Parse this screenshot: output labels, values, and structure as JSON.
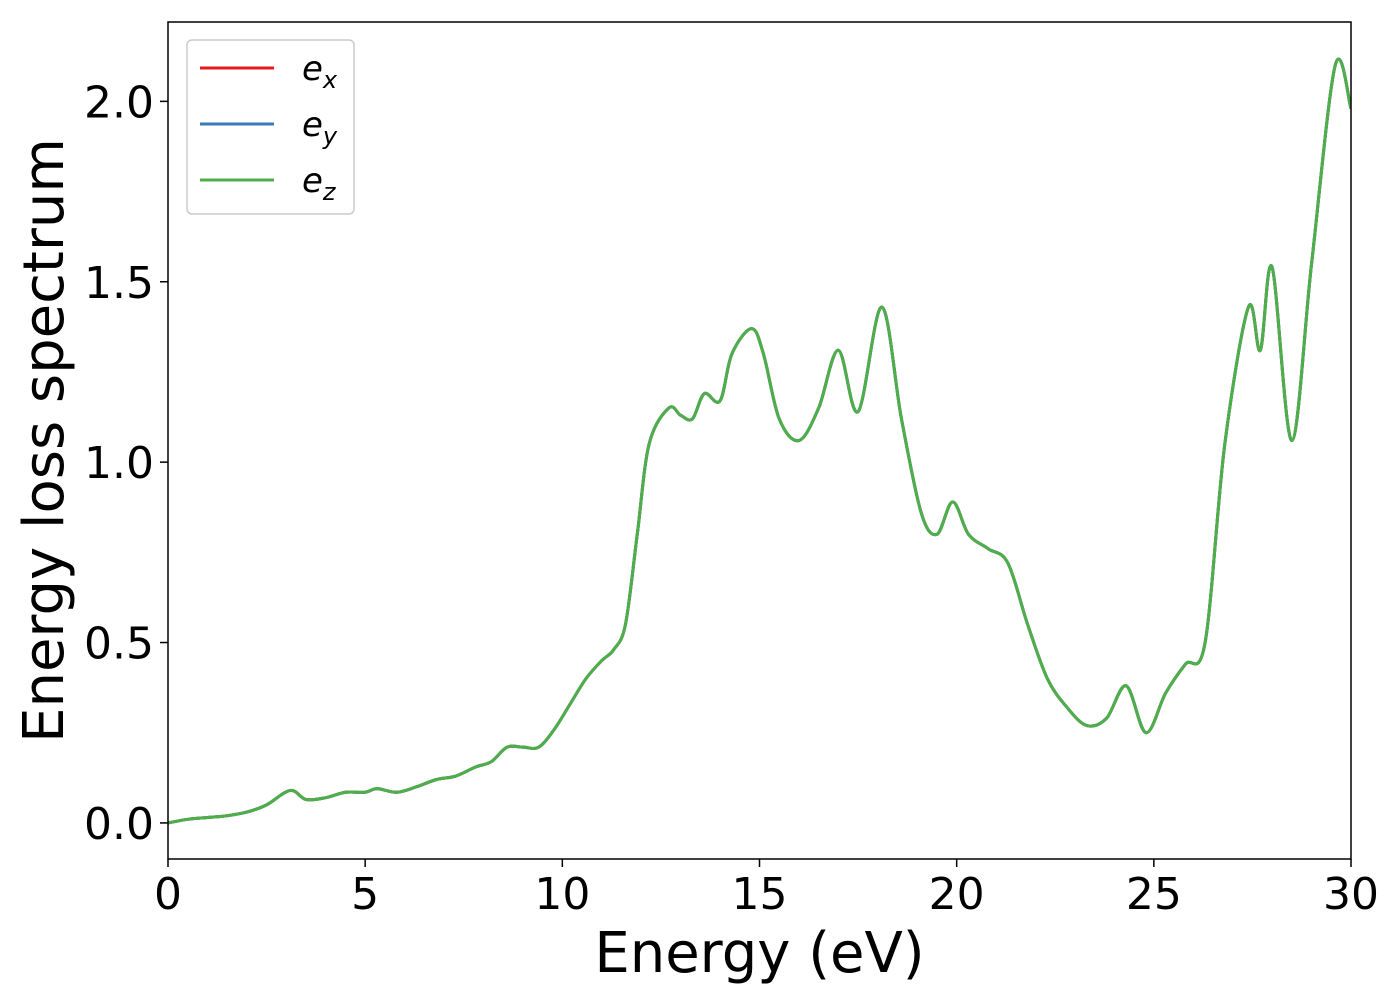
{
  "chart_data": {
    "type": "line",
    "title": "",
    "xlabel": "Energy (eV)",
    "ylabel": "Energy loss spectrum",
    "xlim": [
      0,
      30
    ],
    "ylim": [
      -0.1,
      2.22
    ],
    "xticks": [
      0,
      5,
      10,
      15,
      20,
      25,
      30
    ],
    "xtick_labels": [
      "0",
      "5",
      "10",
      "15",
      "20",
      "25",
      "30"
    ],
    "yticks": [
      0.0,
      0.5,
      1.0,
      1.5,
      2.0
    ],
    "ytick_labels": [
      "0.0",
      "0.5",
      "1.0",
      "1.5",
      "2.0"
    ],
    "grid": false,
    "legend_position": "top-left",
    "x": [
      0,
      0.5,
      1.0,
      1.5,
      2.0,
      2.5,
      3.1,
      3.5,
      4.0,
      4.5,
      5.0,
      5.3,
      5.8,
      6.3,
      6.8,
      7.3,
      7.8,
      8.2,
      8.6,
      9.0,
      9.4,
      9.8,
      10.2,
      10.6,
      11.0,
      11.3,
      11.6,
      11.9,
      12.2,
      12.7,
      13.0,
      13.3,
      13.6,
      14.0,
      14.3,
      14.8,
      15.1,
      15.5,
      16.0,
      16.5,
      17.0,
      17.5,
      18.1,
      18.6,
      19.1,
      19.5,
      19.9,
      20.3,
      20.8,
      21.3,
      21.8,
      22.3,
      22.8,
      23.3,
      23.8,
      24.3,
      24.8,
      25.3,
      25.8,
      26.3,
      26.8,
      27.4,
      27.7,
      28.0,
      28.5,
      29.0,
      29.6,
      30.0
    ],
    "series": [
      {
        "name": "e_x",
        "legend_main": "e",
        "legend_sub": "x",
        "color": "#e41a1c",
        "values": [
          0.0,
          0.01,
          0.015,
          0.02,
          0.03,
          0.05,
          0.09,
          0.065,
          0.07,
          0.085,
          0.085,
          0.095,
          0.085,
          0.1,
          0.12,
          0.13,
          0.155,
          0.17,
          0.21,
          0.21,
          0.21,
          0.26,
          0.33,
          0.4,
          0.45,
          0.48,
          0.55,
          0.8,
          1.05,
          1.15,
          1.13,
          1.12,
          1.19,
          1.17,
          1.3,
          1.37,
          1.3,
          1.12,
          1.06,
          1.15,
          1.31,
          1.14,
          1.43,
          1.12,
          0.86,
          0.8,
          0.89,
          0.8,
          0.76,
          0.72,
          0.55,
          0.4,
          0.32,
          0.27,
          0.29,
          0.38,
          0.25,
          0.36,
          0.44,
          0.5,
          1.05,
          1.43,
          1.31,
          1.54,
          1.06,
          1.55,
          2.1,
          1.98
        ]
      },
      {
        "name": "e_y",
        "legend_main": "e",
        "legend_sub": "y",
        "color": "#377eb8",
        "values": [
          0.0,
          0.01,
          0.015,
          0.02,
          0.03,
          0.05,
          0.09,
          0.065,
          0.07,
          0.085,
          0.085,
          0.095,
          0.085,
          0.1,
          0.12,
          0.13,
          0.155,
          0.17,
          0.21,
          0.21,
          0.21,
          0.26,
          0.33,
          0.4,
          0.45,
          0.48,
          0.55,
          0.8,
          1.05,
          1.15,
          1.13,
          1.12,
          1.19,
          1.17,
          1.3,
          1.37,
          1.3,
          1.12,
          1.06,
          1.15,
          1.31,
          1.14,
          1.43,
          1.12,
          0.86,
          0.8,
          0.89,
          0.8,
          0.76,
          0.72,
          0.55,
          0.4,
          0.32,
          0.27,
          0.29,
          0.38,
          0.25,
          0.36,
          0.44,
          0.5,
          1.05,
          1.43,
          1.31,
          1.54,
          1.06,
          1.55,
          2.1,
          1.98
        ]
      },
      {
        "name": "e_z",
        "legend_main": "e",
        "legend_sub": "z",
        "color": "#4daf4a",
        "values": [
          0.0,
          0.01,
          0.015,
          0.02,
          0.03,
          0.05,
          0.09,
          0.065,
          0.07,
          0.085,
          0.085,
          0.095,
          0.085,
          0.1,
          0.12,
          0.13,
          0.155,
          0.17,
          0.21,
          0.21,
          0.21,
          0.26,
          0.33,
          0.4,
          0.45,
          0.48,
          0.55,
          0.8,
          1.05,
          1.15,
          1.13,
          1.12,
          1.19,
          1.17,
          1.3,
          1.37,
          1.3,
          1.12,
          1.06,
          1.15,
          1.31,
          1.14,
          1.43,
          1.12,
          0.86,
          0.8,
          0.89,
          0.8,
          0.76,
          0.72,
          0.55,
          0.4,
          0.32,
          0.27,
          0.29,
          0.38,
          0.25,
          0.36,
          0.44,
          0.5,
          1.05,
          1.43,
          1.31,
          1.54,
          1.06,
          1.55,
          2.1,
          1.98
        ]
      }
    ]
  }
}
